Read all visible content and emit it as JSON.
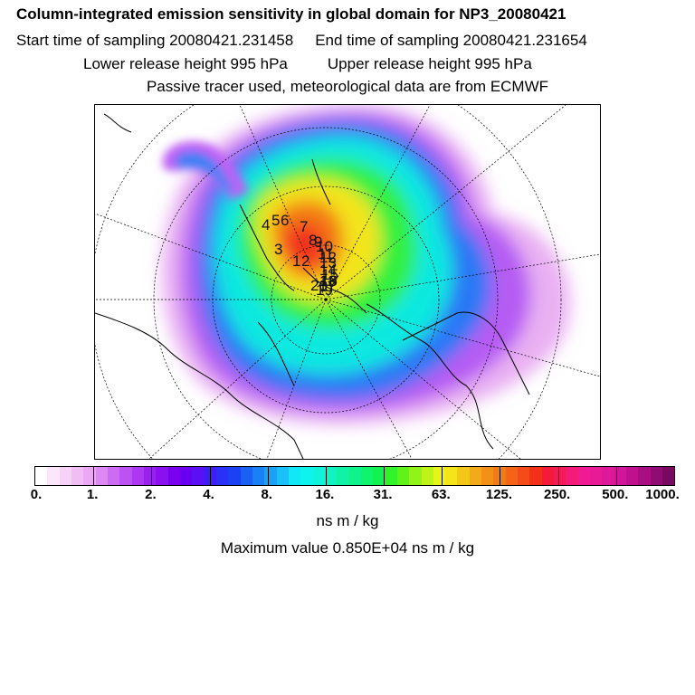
{
  "header": {
    "title": "Column-integrated emission sensitivity in global domain for NP3_20080421",
    "start_time": "Start time of sampling 20080421.231458",
    "end_time": "End time of sampling 20080421.231654",
    "lower_release": "Lower release height  995 hPa",
    "upper_release": "Upper release height  995 hPa",
    "tracer_info": "Passive tracer used, meteorological data are from ECMWF"
  },
  "chart_data": {
    "type": "heatmap",
    "title": "Column-integrated emission sensitivity in global domain for NP3_20080421",
    "projection": "north polar stereographic",
    "colorbar": {
      "scale": "logarithmic",
      "tick_labels": [
        "0.",
        "1.",
        "2.",
        "4.",
        "8.",
        "16.",
        "31.",
        "63.",
        "125.",
        "250.",
        "500.",
        "1000."
      ],
      "colors": [
        "#ffffff",
        "#fbe6fb",
        "#f6d2f8",
        "#f1bdf5",
        "#eda8f3",
        "#dd88f3",
        "#cd6cf3",
        "#bd52f4",
        "#ad38f2",
        "#9a20f0",
        "#8a10f0",
        "#7a00f0",
        "#6a00f0",
        "#5a10f5",
        "#3a1ef5",
        "#2a30f5",
        "#1c40f4",
        "#1a60f5",
        "#1a80f6",
        "#1aa0f7",
        "#1ac0f7",
        "#10e8f5",
        "#10f3ec",
        "#10f3d8",
        "#10f3c0",
        "#10f3a6",
        "#10f38a",
        "#10f36c",
        "#10f350",
        "#32f32a",
        "#60f31a",
        "#90f31a",
        "#bef31a",
        "#e8f31a",
        "#f3e51a",
        "#f3c81a",
        "#f3aa1a",
        "#f39018",
        "#f37a18",
        "#f36418",
        "#f34c18",
        "#f3301a",
        "#f31a3a",
        "#f31a5a",
        "#f31a7a",
        "#f01a92",
        "#e81a96",
        "#de1898",
        "#d0169a",
        "#c0108e",
        "#a80e82",
        "#900c72",
        "#780860"
      ]
    },
    "unit": "ns m / kg",
    "max_value": 8500,
    "max_label": "Maximum value  0.850E+04 ns m / kg",
    "point_labels": [
      "1",
      "2",
      "3",
      "4",
      "5",
      "6",
      "7",
      "8",
      "9",
      "10",
      "11",
      "12",
      "13",
      "14",
      "15",
      "16",
      "17",
      "18",
      "19",
      "20"
    ]
  }
}
